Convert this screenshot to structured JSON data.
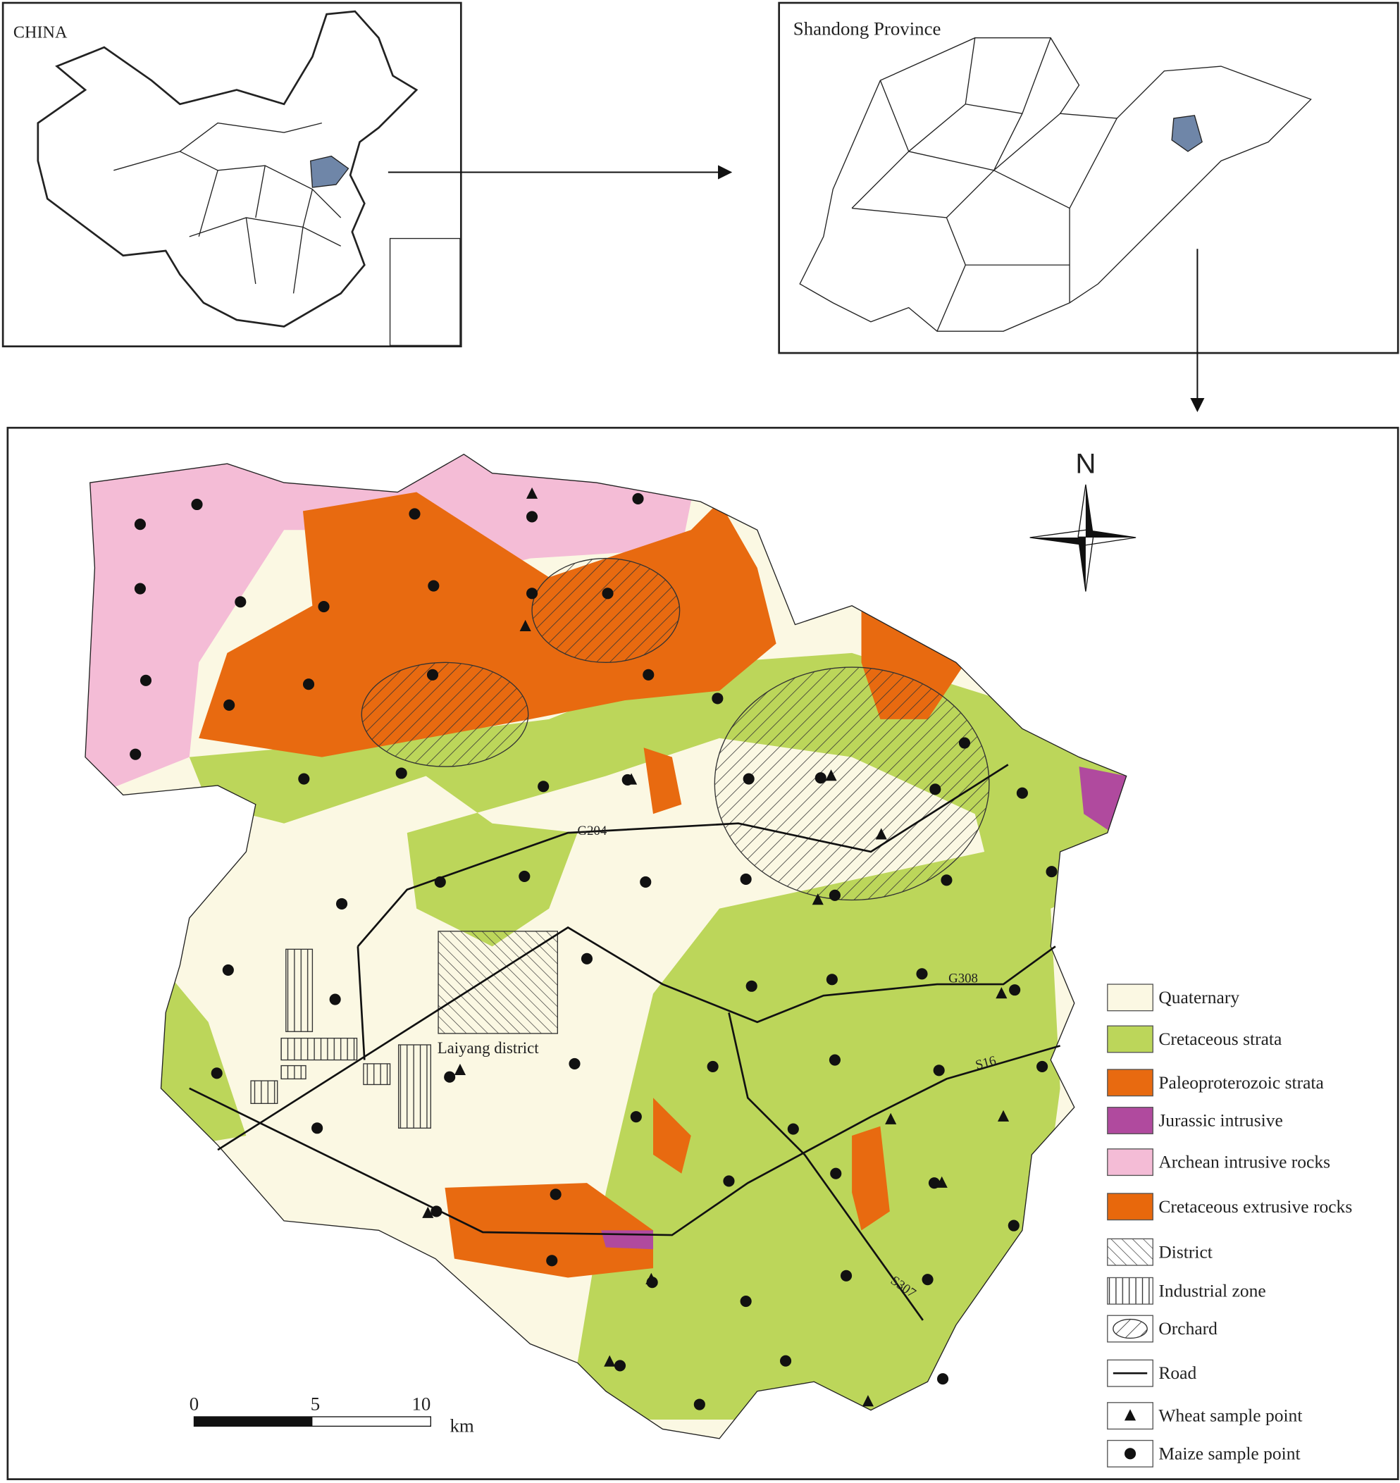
{
  "inset_china": {
    "label": "CHINA"
  },
  "inset_province": {
    "label": "Shandong Province"
  },
  "north_arrow": "N",
  "roads": [
    "G204",
    "G308",
    "S16",
    "S307"
  ],
  "district_label": "Laiyang district",
  "legend": [
    "Quaternary",
    "Cretaceous strata",
    "Paleoproterozoic strata",
    "Jurassic intrusive",
    "Archean intrusive rocks",
    "Cretaceous extrusive rocks",
    "District",
    "Industrial zone",
    "Orchard",
    "Road",
    "Wheat sample point",
    "Maize sample point"
  ],
  "scale_bar": {
    "ticks": [
      "0",
      "5",
      "10"
    ],
    "unit": "km"
  }
}
